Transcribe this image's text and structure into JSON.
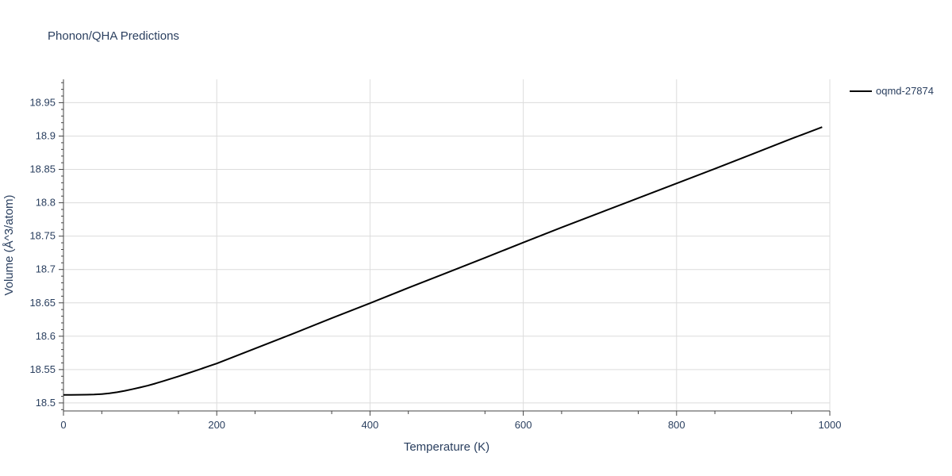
{
  "chart_data": {
    "type": "line",
    "title": "Phonon/QHA Predictions",
    "xlabel": "Temperature (K)",
    "ylabel": "Volume (Å^3/atom)",
    "xlim": [
      0,
      1000
    ],
    "ylim": [
      18.488,
      18.985
    ],
    "x_ticks": [
      0,
      200,
      400,
      600,
      800,
      1000
    ],
    "x_tick_labels": [
      "0",
      "200",
      "400",
      "600",
      "800",
      "1000"
    ],
    "y_ticks": [
      18.5,
      18.55,
      18.6,
      18.65,
      18.7,
      18.75,
      18.8,
      18.85,
      18.9,
      18.95
    ],
    "y_tick_labels": [
      "18.5",
      "18.55",
      "18.6",
      "18.65",
      "18.7",
      "18.75",
      "18.8",
      "18.85",
      "18.9",
      "18.95"
    ],
    "grid": true,
    "legend_position": "top-right",
    "line_color": "#000000",
    "series": [
      {
        "name": "oqmd-27874",
        "x": [
          0,
          10,
          20,
          30,
          40,
          50,
          60,
          70,
          80,
          90,
          100,
          110,
          120,
          130,
          140,
          150,
          160,
          170,
          180,
          190,
          200,
          250,
          300,
          350,
          400,
          450,
          500,
          550,
          600,
          650,
          700,
          750,
          800,
          850,
          900,
          950,
          990
        ],
        "y": [
          18.512,
          18.512,
          18.5122,
          18.5123,
          18.5126,
          18.5133,
          18.5145,
          18.5161,
          18.5182,
          18.5206,
          18.5232,
          18.526,
          18.5292,
          18.5327,
          18.5362,
          18.5398,
          18.5436,
          18.5474,
          18.5513,
          18.5552,
          18.5591,
          18.5815,
          18.604,
          18.627,
          18.6495,
          18.6725,
          18.695,
          18.7175,
          18.7405,
          18.763,
          18.785,
          18.807,
          18.829,
          18.851,
          18.8735,
          18.896,
          18.9134
        ]
      }
    ]
  }
}
